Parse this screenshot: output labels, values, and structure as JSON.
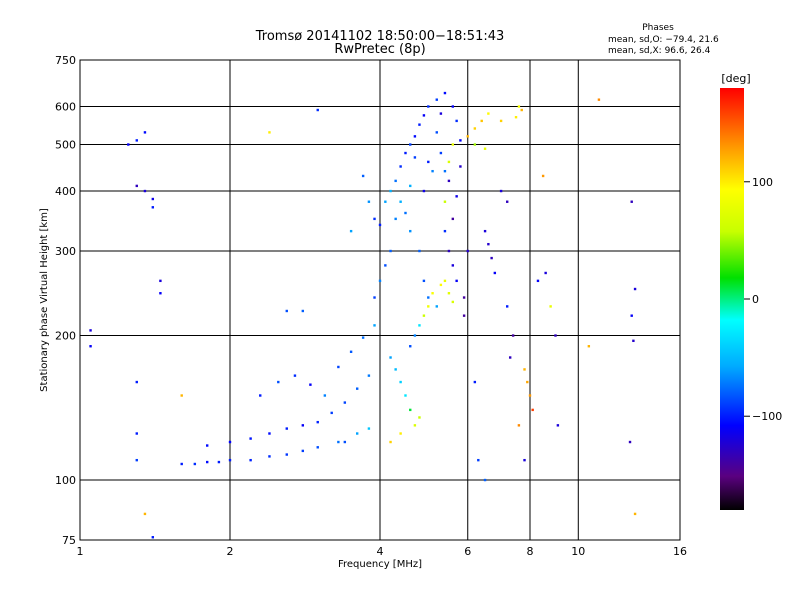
{
  "chart_data": {
    "type": "scatter",
    "title": "Tromsø 20141102 18:50:00−18:51:43",
    "subtitle": "RwPretec (8p)",
    "xlabel": "Frequency [MHz]",
    "ylabel": "Stationary phase Virtual Height [km]",
    "x_scale": "log",
    "y_scale": "log",
    "xlim": [
      1,
      16
    ],
    "ylim": [
      75,
      750
    ],
    "x_ticks": [
      1,
      2,
      4,
      6,
      8,
      10,
      16
    ],
    "x_tick_labels": [
      "1",
      "2",
      "4",
      "6",
      "8",
      "10",
      "16"
    ],
    "y_ticks": [
      75,
      100,
      200,
      300,
      400,
      500,
      600,
      750
    ],
    "y_tick_labels": [
      "75",
      "100",
      "200",
      "300",
      "400",
      "500",
      "600",
      "750"
    ],
    "grid": true,
    "stats": {
      "heading": "Phases",
      "line_o": "mean, sd,O: −79.4, 21.6",
      "line_x": "mean, sd,X:  96.6, 26.4"
    },
    "colorbar": {
      "label": "[deg]",
      "min": -180,
      "max": 180,
      "ticks": [
        -100,
        0,
        100
      ],
      "tick_labels": [
        "−100",
        "0",
        "100"
      ],
      "colormap": "rainbow"
    },
    "points": [
      [
        1.6,
        108,
        -100
      ],
      [
        1.7,
        108,
        -95
      ],
      [
        1.8,
        109,
        -105
      ],
      [
        1.9,
        109,
        -100
      ],
      [
        2.0,
        110,
        -100
      ],
      [
        2.2,
        110,
        -98
      ],
      [
        2.4,
        112,
        -95
      ],
      [
        2.6,
        113,
        -92
      ],
      [
        2.8,
        115,
        -90
      ],
      [
        3.0,
        117,
        -85
      ],
      [
        3.3,
        120,
        -75
      ],
      [
        3.6,
        125,
        -60
      ],
      [
        3.8,
        128,
        -45
      ],
      [
        1.8,
        118,
        -105
      ],
      [
        2.0,
        120,
        -108
      ],
      [
        2.2,
        122,
        -102
      ],
      [
        2.4,
        125,
        -105
      ],
      [
        2.6,
        128,
        -100
      ],
      [
        2.8,
        130,
        -110
      ],
      [
        3.0,
        132,
        -98
      ],
      [
        3.2,
        138,
        -90
      ],
      [
        3.4,
        145,
        -88
      ],
      [
        3.6,
        155,
        -80
      ],
      [
        3.8,
        165,
        -72
      ],
      [
        2.3,
        150,
        -100
      ],
      [
        2.5,
        160,
        -85
      ],
      [
        2.7,
        165,
        -95
      ],
      [
        2.9,
        158,
        -110
      ],
      [
        3.1,
        150,
        -70
      ],
      [
        3.3,
        172,
        -88
      ],
      [
        3.5,
        185,
        -82
      ],
      [
        3.7,
        198,
        -75
      ],
      [
        3.9,
        210,
        -60
      ],
      [
        3.9,
        240,
        -90
      ],
      [
        4.0,
        260,
        -70
      ],
      [
        4.1,
        280,
        -85
      ],
      [
        4.2,
        300,
        -80
      ],
      [
        4.1,
        380,
        -60
      ],
      [
        4.2,
        400,
        -55
      ],
      [
        4.3,
        420,
        -75
      ],
      [
        4.4,
        450,
        -95
      ],
      [
        4.5,
        480,
        -100
      ],
      [
        4.6,
        500,
        -90
      ],
      [
        4.7,
        520,
        -105
      ],
      [
        4.8,
        550,
        -100
      ],
      [
        4.9,
        575,
        -110
      ],
      [
        5.0,
        600,
        -95
      ],
      [
        5.2,
        620,
        -90
      ],
      [
        5.4,
        640,
        -105
      ],
      [
        5.6,
        600,
        -110
      ],
      [
        5.7,
        560,
        -95
      ],
      [
        4.3,
        350,
        -70
      ],
      [
        4.4,
        380,
        -55
      ],
      [
        4.6,
        330,
        -65
      ],
      [
        4.8,
        300,
        -80
      ],
      [
        4.9,
        260,
        -85
      ],
      [
        5.0,
        240,
        -75
      ],
      [
        5.2,
        230,
        -60
      ],
      [
        4.6,
        190,
        -85
      ],
      [
        4.7,
        200,
        -70
      ],
      [
        4.8,
        210,
        -30
      ],
      [
        4.9,
        220,
        60
      ],
      [
        5.0,
        230,
        85
      ],
      [
        5.1,
        245,
        90
      ],
      [
        5.3,
        255,
        95
      ],
      [
        5.4,
        260,
        80
      ],
      [
        5.5,
        245,
        75
      ],
      [
        5.6,
        235,
        70
      ],
      [
        4.2,
        180,
        -60
      ],
      [
        4.3,
        170,
        -50
      ],
      [
        4.4,
        160,
        -40
      ],
      [
        4.5,
        150,
        -30
      ],
      [
        4.6,
        140,
        10
      ],
      [
        4.7,
        130,
        70
      ],
      [
        4.4,
        125,
        100
      ],
      [
        4.2,
        120,
        110
      ],
      [
        4.8,
        135,
        60
      ],
      [
        5.5,
        300,
        -130
      ],
      [
        5.6,
        280,
        -120
      ],
      [
        5.7,
        260,
        -110
      ],
      [
        5.6,
        350,
        -140
      ],
      [
        5.5,
        420,
        -130
      ],
      [
        5.4,
        380,
        60
      ],
      [
        5.5,
        460,
        70
      ],
      [
        5.6,
        500,
        80
      ],
      [
        5.4,
        440,
        -75
      ],
      [
        5.3,
        480,
        -90
      ],
      [
        6.0,
        520,
        120
      ],
      [
        6.2,
        540,
        110
      ],
      [
        6.4,
        560,
        115
      ],
      [
        6.6,
        580,
        95
      ],
      [
        6.2,
        500,
        50
      ],
      [
        6.5,
        490,
        80
      ],
      [
        7.0,
        560,
        110
      ],
      [
        7.5,
        570,
        100
      ],
      [
        7.6,
        600,
        90
      ],
      [
        7.7,
        590,
        120
      ],
      [
        6.5,
        330,
        -120
      ],
      [
        6.6,
        310,
        -125
      ],
      [
        6.7,
        290,
        -130
      ],
      [
        6.8,
        270,
        -110
      ],
      [
        7.2,
        230,
        -100
      ],
      [
        7.4,
        200,
        -140
      ],
      [
        7.0,
        400,
        -120
      ],
      [
        7.2,
        380,
        -130
      ],
      [
        7.8,
        170,
        120
      ],
      [
        7.9,
        160,
        125
      ],
      [
        8.0,
        150,
        130
      ],
      [
        7.6,
        130,
        135
      ],
      [
        8.1,
        140,
        160
      ],
      [
        8.5,
        430,
        130
      ],
      [
        8.6,
        270,
        -120
      ],
      [
        8.8,
        230,
        80
      ],
      [
        9.0,
        200,
        -130
      ],
      [
        9.1,
        130,
        -120
      ],
      [
        10.5,
        190,
        120
      ],
      [
        11.0,
        620,
        135
      ],
      [
        12.8,
        380,
        -130
      ],
      [
        13.0,
        250,
        -120
      ],
      [
        12.8,
        220,
        -110
      ],
      [
        12.9,
        195,
        -125
      ],
      [
        12.7,
        120,
        -130
      ],
      [
        13.0,
        85,
        120
      ],
      [
        1.05,
        205,
        -120
      ],
      [
        1.05,
        190,
        -110
      ],
      [
        1.25,
        500,
        -110
      ],
      [
        1.3,
        510,
        -100
      ],
      [
        1.35,
        530,
        -105
      ],
      [
        1.3,
        410,
        -130
      ],
      [
        1.35,
        400,
        -120
      ],
      [
        1.4,
        385,
        -115
      ],
      [
        1.4,
        370,
        -100
      ],
      [
        1.45,
        260,
        -120
      ],
      [
        1.45,
        245,
        -110
      ],
      [
        1.3,
        160,
        -100
      ],
      [
        1.3,
        125,
        -100
      ],
      [
        1.3,
        110,
        -90
      ],
      [
        1.35,
        85,
        120
      ],
      [
        1.4,
        76,
        -100
      ],
      [
        1.6,
        150,
        120
      ],
      [
        2.4,
        530,
        100
      ],
      [
        2.6,
        225,
        -85
      ],
      [
        2.8,
        225,
        -80
      ],
      [
        3.0,
        590,
        -95
      ],
      [
        3.4,
        120,
        -85
      ],
      [
        3.5,
        330,
        -60
      ],
      [
        3.7,
        430,
        -80
      ],
      [
        3.8,
        380,
        -65
      ],
      [
        3.9,
        350,
        -95
      ],
      [
        4.0,
        340,
        -100
      ],
      [
        4.5,
        360,
        -75
      ],
      [
        4.6,
        410,
        -55
      ],
      [
        4.7,
        470,
        -90
      ],
      [
        4.9,
        400,
        -115
      ],
      [
        5.0,
        460,
        -100
      ],
      [
        5.1,
        440,
        -70
      ],
      [
        5.2,
        530,
        -85
      ],
      [
        5.3,
        580,
        -120
      ],
      [
        5.4,
        330,
        -95
      ],
      [
        5.7,
        390,
        -115
      ],
      [
        5.8,
        450,
        -125
      ],
      [
        5.8,
        510,
        -110
      ],
      [
        5.9,
        240,
        -140
      ],
      [
        5.9,
        220,
        -140
      ],
      [
        6.0,
        300,
        -125
      ],
      [
        6.2,
        160,
        -100
      ],
      [
        6.3,
        110,
        -90
      ],
      [
        6.5,
        100,
        -80
      ],
      [
        7.3,
        180,
        -130
      ],
      [
        7.8,
        110,
        -120
      ],
      [
        8.3,
        260,
        -110
      ]
    ]
  }
}
